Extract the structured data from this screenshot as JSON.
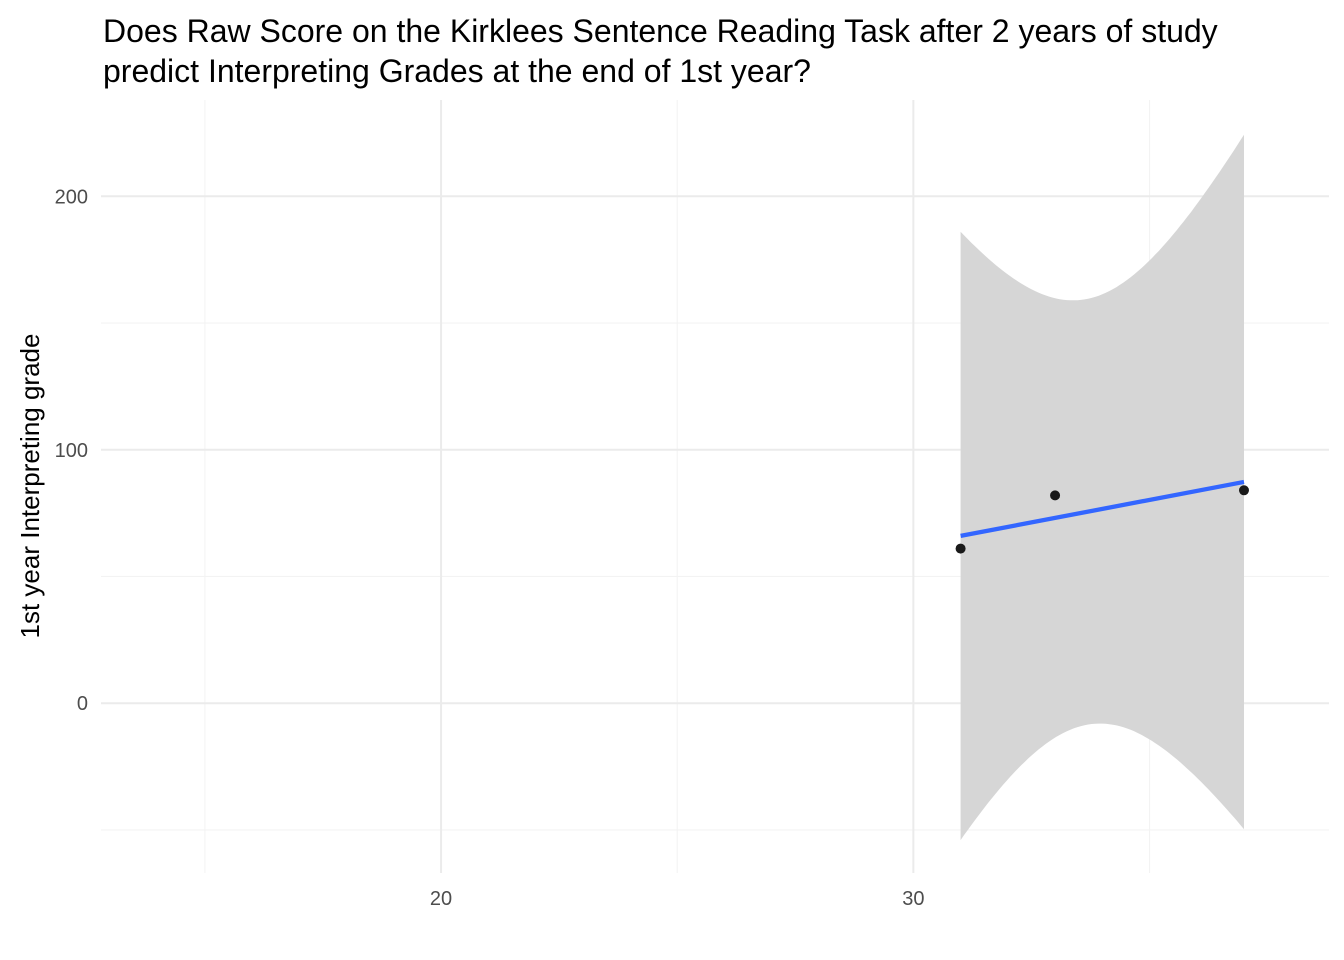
{
  "chart_data": {
    "type": "scatter",
    "title_lines": [
      "Does Raw Score on the Kirklees Sentence Reading Task after 2 years of study",
      "predict Interpreting Grades at the end of 1st year?"
    ],
    "xlabel": "",
    "ylabel": "1st year Interpreting grade",
    "xlim": [
      12.8,
      38.8
    ],
    "ylim": [
      -67,
      238
    ],
    "x_ticks": [
      20,
      30
    ],
    "y_ticks": [
      0,
      100,
      200
    ],
    "x_minor_gridlines": [
      15,
      25,
      35
    ],
    "y_minor_gridlines": [
      -50,
      50,
      150
    ],
    "grid": true,
    "points": [
      {
        "x": 31,
        "y": 61
      },
      {
        "x": 33,
        "y": 82
      },
      {
        "x": 37,
        "y": 84
      }
    ],
    "fit": {
      "method": "lm",
      "x_range": [
        31,
        37
      ],
      "start": [
        31,
        66
      ],
      "end": [
        37,
        87.3
      ],
      "confidence_band": {
        "x_mean": 33.667,
        "half_width_at_mean": 84,
        "half_width_at_x_min": 120,
        "half_width_at_x_max": 137
      }
    },
    "colors": {
      "points": "#1a1a1a",
      "fit_line": "#3366ff",
      "band": "#d6d6d6",
      "grid_major": "#ebebeb",
      "grid_minor": "#f3f3f3",
      "tick_label": "#4d4d4d"
    }
  }
}
